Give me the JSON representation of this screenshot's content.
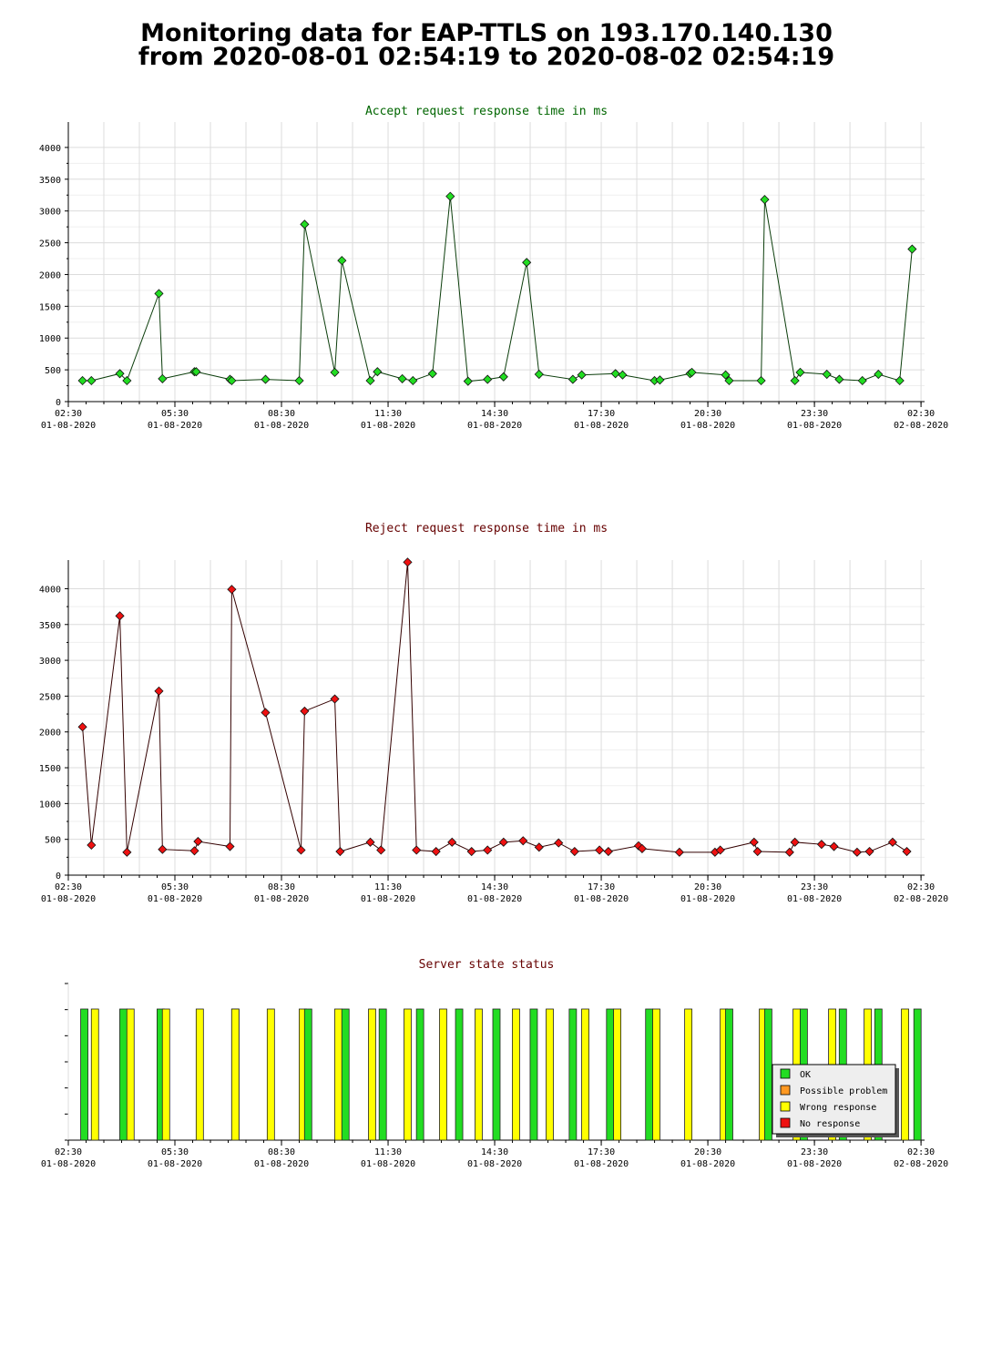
{
  "page": {
    "title_line1": "Monitoring data for EAP-TTLS on 193.170.140.130",
    "title_line2": "from 2020-08-01 02:54:19 to 2020-08-02 02:54:19"
  },
  "colors": {
    "accept_line": "#0b3d0b",
    "accept_marker": "#22dd22",
    "accept_title": "#006600",
    "reject_line": "#330000",
    "reject_marker": "#ee1111",
    "reject_title": "#660000",
    "status_title": "#660000",
    "status_ok": "#22dd22",
    "status_possible": "#ff9922",
    "status_wrong": "#ffff00",
    "status_none": "#ee1111",
    "grid": "#dcdcdc"
  },
  "x_axis": {
    "tick_labels": [
      {
        "time": "02:30",
        "date": "01-08-2020"
      },
      {
        "time": "05:30",
        "date": "01-08-2020"
      },
      {
        "time": "08:30",
        "date": "01-08-2020"
      },
      {
        "time": "11:30",
        "date": "01-08-2020"
      },
      {
        "time": "14:30",
        "date": "01-08-2020"
      },
      {
        "time": "17:30",
        "date": "01-08-2020"
      },
      {
        "time": "20:30",
        "date": "01-08-2020"
      },
      {
        "time": "23:30",
        "date": "01-08-2020"
      },
      {
        "time": "02:30",
        "date": "02-08-2020"
      }
    ],
    "tick_hours": [
      2.5,
      5.5,
      8.5,
      11.5,
      14.5,
      17.5,
      20.5,
      23.5,
      26.5
    ],
    "range_hours": [
      2.5,
      26.6
    ]
  },
  "chart_data": [
    {
      "type": "line",
      "title": "Accept request response time in ms",
      "ylim": [
        0,
        4400
      ],
      "y_ticks": [
        0,
        500,
        1000,
        1500,
        2000,
        2500,
        3000,
        3500,
        4000
      ],
      "series": [
        {
          "x_hours": [
            2.9,
            3.15,
            3.95,
            4.15,
            5.05,
            5.15,
            6.05,
            6.1,
            7.05,
            7.1,
            8.05,
            9.0,
            9.15,
            10.0,
            10.2,
            11.0,
            11.2,
            11.9,
            12.2,
            12.75,
            13.25,
            13.75,
            14.3,
            14.75,
            15.4,
            15.75,
            16.7,
            16.95,
            17.9,
            18.1,
            19.0,
            19.15,
            20.0,
            20.05,
            21.0,
            21.1,
            22.0,
            22.1,
            22.95,
            23.1,
            23.85,
            24.2,
            24.85,
            25.3,
            25.9,
            26.25
          ],
          "values": [
            330,
            330,
            440,
            330,
            1700,
            360,
            470,
            470,
            350,
            330,
            350,
            330,
            2790,
            460,
            2220,
            330,
            470,
            360,
            330,
            440,
            3230,
            320,
            350,
            390,
            2190,
            430,
            350,
            420,
            440,
            420,
            330,
            340,
            440,
            460,
            420,
            330,
            330,
            3180,
            330,
            460,
            430,
            350,
            330,
            430,
            330,
            2400
          ]
        }
      ]
    },
    {
      "type": "line",
      "title": "Reject request response time in ms",
      "ylim": [
        0,
        4400
      ],
      "y_ticks": [
        0,
        500,
        1000,
        1500,
        2000,
        2500,
        3000,
        3500,
        4000
      ],
      "series": [
        {
          "x_hours": [
            2.9,
            3.15,
            3.95,
            4.15,
            5.05,
            5.15,
            6.05,
            6.15,
            7.05,
            7.1,
            8.05,
            9.05,
            9.15,
            10.0,
            10.15,
            11.0,
            11.3,
            12.05,
            12.3,
            12.85,
            13.3,
            13.85,
            14.3,
            14.75,
            15.3,
            15.75,
            16.3,
            16.75,
            17.45,
            17.7,
            18.55,
            18.65,
            19.7,
            20.7,
            20.85,
            21.8,
            21.9,
            22.8,
            22.95,
            23.7,
            24.05,
            24.7,
            25.05,
            25.7,
            26.1
          ],
          "values": [
            2070,
            420,
            3620,
            320,
            2570,
            360,
            340,
            470,
            400,
            3990,
            2270,
            350,
            2290,
            2460,
            330,
            460,
            350,
            4370,
            350,
            330,
            460,
            330,
            350,
            460,
            480,
            390,
            450,
            330,
            350,
            330,
            410,
            370,
            320,
            320,
            350,
            460,
            330,
            320,
            460,
            430,
            400,
            320,
            330,
            460,
            330
          ]
        }
      ]
    },
    {
      "type": "bar",
      "title": "Server state status",
      "legend": [
        "OK",
        "Possible problem",
        "Wrong response",
        "No response"
      ],
      "legend_position": "bottom-right",
      "bars": [
        {
          "x_hours": 2.95,
          "state": "OK"
        },
        {
          "x_hours": 3.25,
          "state": "Wrong response"
        },
        {
          "x_hours": 4.05,
          "state": "OK"
        },
        {
          "x_hours": 4.25,
          "state": "Wrong response"
        },
        {
          "x_hours": 5.1,
          "state": "OK"
        },
        {
          "x_hours": 5.25,
          "state": "Wrong response"
        },
        {
          "x_hours": 6.2,
          "state": "Wrong response"
        },
        {
          "x_hours": 7.2,
          "state": "OK"
        },
        {
          "x_hours": 7.2,
          "state": "Wrong response"
        },
        {
          "x_hours": 8.2,
          "state": "Wrong response"
        },
        {
          "x_hours": 9.1,
          "state": "Wrong response"
        },
        {
          "x_hours": 9.25,
          "state": "OK"
        },
        {
          "x_hours": 10.1,
          "state": "Wrong response"
        },
        {
          "x_hours": 10.3,
          "state": "OK"
        },
        {
          "x_hours": 11.05,
          "state": "Wrong response"
        },
        {
          "x_hours": 11.35,
          "state": "OK"
        },
        {
          "x_hours": 12.05,
          "state": "Wrong response"
        },
        {
          "x_hours": 12.4,
          "state": "OK"
        },
        {
          "x_hours": 13.05,
          "state": "Wrong response"
        },
        {
          "x_hours": 13.5,
          "state": "OK"
        },
        {
          "x_hours": 14.05,
          "state": "Wrong response"
        },
        {
          "x_hours": 14.55,
          "state": "OK"
        },
        {
          "x_hours": 15.1,
          "state": "Wrong response"
        },
        {
          "x_hours": 15.6,
          "state": "OK"
        },
        {
          "x_hours": 16.05,
          "state": "Wrong response"
        },
        {
          "x_hours": 16.7,
          "state": "OK"
        },
        {
          "x_hours": 17.05,
          "state": "Wrong response"
        },
        {
          "x_hours": 17.75,
          "state": "OK"
        },
        {
          "x_hours": 17.95,
          "state": "Wrong response"
        },
        {
          "x_hours": 18.85,
          "state": "OK"
        },
        {
          "x_hours": 19.05,
          "state": "Wrong response"
        },
        {
          "x_hours": 19.95,
          "state": "Wrong response"
        },
        {
          "x_hours": 20.95,
          "state": "Wrong response"
        },
        {
          "x_hours": 21.1,
          "state": "OK"
        },
        {
          "x_hours": 22.05,
          "state": "Wrong response"
        },
        {
          "x_hours": 22.2,
          "state": "OK"
        },
        {
          "x_hours": 23.0,
          "state": "Wrong response"
        },
        {
          "x_hours": 23.2,
          "state": "OK"
        },
        {
          "x_hours": 24.0,
          "state": "Wrong response"
        },
        {
          "x_hours": 24.3,
          "state": "OK"
        },
        {
          "x_hours": 25.0,
          "state": "Wrong response"
        },
        {
          "x_hours": 25.3,
          "state": "OK"
        },
        {
          "x_hours": 26.05,
          "state": "Wrong response"
        },
        {
          "x_hours": 26.4,
          "state": "OK"
        }
      ]
    }
  ]
}
